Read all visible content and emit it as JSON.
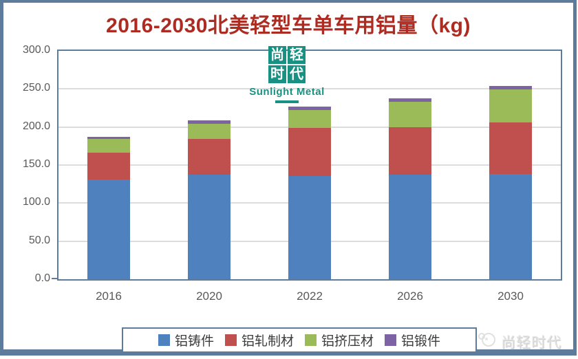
{
  "title": "2016-2030北美轻型车单车用铝量（kg)",
  "colors": {
    "title_red": "#AD2B21",
    "frame_slate": "#5D7C9B",
    "gridline": "#DCDCDC",
    "axis_text": "#595959",
    "watermark_teal": "#189183",
    "corner_watermark_gray": "#E2E2E2"
  },
  "chart_data": {
    "type": "bar",
    "subtype": "stacked",
    "title": "2016-2030北美轻型车单车用铝量（kg)",
    "categories": [
      "2016",
      "2020",
      "2022",
      "2026",
      "2030"
    ],
    "series": [
      {
        "name": "铝铸件",
        "color": "#4E81BD",
        "values": [
          131,
          137,
          136,
          137,
          138
        ]
      },
      {
        "name": "铝轧制材",
        "color": "#C0504D",
        "values": [
          35,
          47,
          63,
          63,
          68
        ]
      },
      {
        "name": "铝挤压材",
        "color": "#9BBB59",
        "values": [
          18,
          20,
          23,
          33,
          43
        ]
      },
      {
        "name": "铝锻件",
        "color": "#7D63A5",
        "values": [
          3,
          5,
          5,
          5,
          5
        ]
      }
    ],
    "xlabel": "",
    "ylabel": "",
    "ylim": [
      0,
      300
    ],
    "yticks": [
      300,
      250,
      200,
      150,
      100,
      50,
      0
    ],
    "yticklabels": [
      "300.0",
      "250.0",
      "200.0",
      "150.0",
      "100.0",
      "50.0",
      "0.0"
    ],
    "grid": true,
    "legend_position": "bottom"
  },
  "center_watermark": {
    "chars_line1": "尚轻",
    "chars_line2": "时代",
    "subtitle": "Sunlight Metal"
  },
  "corner_watermark": {
    "label": "尚轻时代"
  }
}
